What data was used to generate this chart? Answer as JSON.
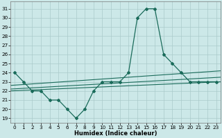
{
  "x": [
    0,
    1,
    2,
    3,
    4,
    5,
    6,
    7,
    8,
    9,
    10,
    11,
    12,
    13,
    14,
    15,
    16,
    17,
    18,
    19,
    20,
    21,
    22,
    23
  ],
  "y_main": [
    24,
    23,
    22,
    22,
    21,
    21,
    20,
    19,
    20,
    22,
    23,
    23,
    23,
    24,
    30,
    31,
    31,
    26,
    25,
    24,
    23,
    23,
    23,
    23
  ],
  "trend_lines": [
    [
      22.0,
      23.0
    ],
    [
      22.2,
      23.5
    ],
    [
      22.6,
      24.2
    ]
  ],
  "bg_color": "#cce8e8",
  "grid_color": "#aacaca",
  "line_color": "#1a6b5a",
  "ylim": [
    18.5,
    31.8
  ],
  "xlim": [
    -0.5,
    23.5
  ],
  "yticks": [
    19,
    20,
    21,
    22,
    23,
    24,
    25,
    26,
    27,
    28,
    29,
    30,
    31
  ],
  "xticks": [
    0,
    1,
    2,
    3,
    4,
    5,
    6,
    7,
    8,
    9,
    10,
    11,
    12,
    13,
    14,
    15,
    16,
    17,
    18,
    19,
    20,
    21,
    22,
    23
  ],
  "xlabel": "Humidex (Indice chaleur)",
  "tick_fontsize": 5.2,
  "label_fontsize": 6.0
}
